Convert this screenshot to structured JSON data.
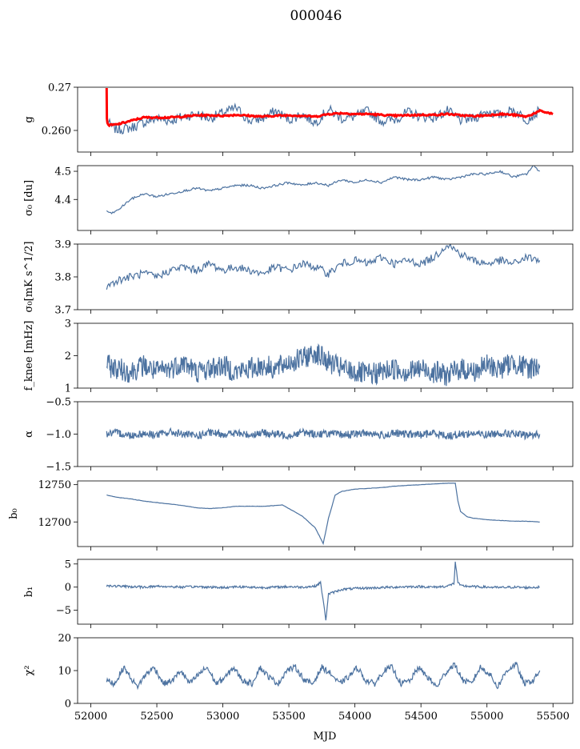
{
  "chart_data": {
    "type": "line",
    "title": "000046",
    "xlabel": "MJD",
    "xlim": [
      51900,
      55650
    ],
    "xticks": [
      52000,
      52500,
      53000,
      53500,
      54000,
      54500,
      55000,
      55500
    ],
    "line_color": "#4c72a0",
    "fit_color": "#ff0000",
    "grid": false,
    "panels": [
      {
        "key": "g",
        "ylabel": "g",
        "ylim": [
          0.255,
          0.27
        ],
        "yticks": [
          0.26,
          0.27
        ],
        "ytick_labels": [
          "0.260",
          "0.27"
        ],
        "series": [
          {
            "x": [
              52120,
              52150,
              52200,
              52300,
              52400,
              52500,
              52600,
              52700,
              52800,
              52900,
              53000,
              53100,
              53200,
              53300,
              53400,
              53500,
              53600,
              53700,
              53800,
              53900,
              54000,
              54100,
              54200,
              54300,
              54400,
              54500,
              54600,
              54700,
              54800,
              54900,
              55000,
              55100,
              55200,
              55300,
              55400
            ],
            "y": [
              0.2625,
              0.261,
              0.2602,
              0.2606,
              0.2618,
              0.2628,
              0.2622,
              0.2632,
              0.2638,
              0.2628,
              0.264,
              0.2652,
              0.2622,
              0.2628,
              0.2645,
              0.2625,
              0.2638,
              0.2618,
              0.2648,
              0.2628,
              0.2632,
              0.2645,
              0.2622,
              0.2625,
              0.2642,
              0.2632,
              0.263,
              0.2645,
              0.2624,
              0.2628,
              0.2644,
              0.2635,
              0.2648,
              0.2625,
              0.2645
            ]
          },
          {
            "x": [
              52120,
              52122,
              52126,
              52140,
              52200,
              52300,
              52400,
              52500,
              52600,
              52700,
              52800,
              52900,
              53000,
              53100,
              53200,
              53300,
              53400,
              53500,
              53600,
              53700,
              53800,
              53900,
              54000,
              54100,
              54200,
              54300,
              54400,
              54500,
              54600,
              54700,
              54800,
              54900,
              55000,
              55100,
              55200,
              55300,
              55400,
              55500
            ],
            "y": [
              0.27,
              0.2628,
              0.2616,
              0.2612,
              0.2614,
              0.2622,
              0.263,
              0.263,
              0.263,
              0.2632,
              0.2635,
              0.2635,
              0.2634,
              0.2636,
              0.2634,
              0.2632,
              0.2634,
              0.2635,
              0.2634,
              0.2632,
              0.2638,
              0.264,
              0.2638,
              0.2638,
              0.2636,
              0.2634,
              0.2635,
              0.2636,
              0.2636,
              0.2638,
              0.2635,
              0.2633,
              0.2635,
              0.2638,
              0.2636,
              0.2632,
              0.2645,
              0.2638
            ]
          }
        ]
      },
      {
        "key": "sigma0_du",
        "ylabel": "σ₀ [du]",
        "ylim": [
          4.29,
          4.52
        ],
        "yticks": [
          4.4,
          4.5
        ],
        "ytick_labels": [
          "4.4",
          "4.5"
        ],
        "series": [
          {
            "x": [
              52120,
              52150,
              52200,
              52250,
              52300,
              52400,
              52500,
              52600,
              52700,
              52800,
              52900,
              53000,
              53100,
              53200,
              53300,
              53400,
              53500,
              53600,
              53700,
              53800,
              53900,
              54000,
              54100,
              54200,
              54300,
              54400,
              54500,
              54600,
              54700,
              54800,
              54900,
              55000,
              55100,
              55200,
              55300,
              55350,
              55400
            ],
            "y": [
              4.36,
              4.35,
              4.36,
              4.38,
              4.4,
              4.42,
              4.41,
              4.42,
              4.43,
              4.44,
              4.43,
              4.44,
              4.45,
              4.45,
              4.44,
              4.45,
              4.46,
              4.45,
              4.46,
              4.45,
              4.47,
              4.46,
              4.47,
              4.46,
              4.48,
              4.47,
              4.47,
              4.48,
              4.47,
              4.48,
              4.49,
              4.49,
              4.5,
              4.48,
              4.49,
              4.52,
              4.5
            ]
          }
        ]
      },
      {
        "key": "sigma0_mks",
        "ylabel": "σ₀[mK s^1/2]",
        "ylim": [
          3.7,
          3.9
        ],
        "yticks": [
          3.7,
          3.8,
          3.9
        ],
        "ytick_labels": [
          "3.7",
          "3.8",
          "3.9"
        ],
        "series": [
          {
            "x": [
              52120,
              52200,
              52300,
              52400,
              52500,
              52600,
              52700,
              52800,
              52900,
              53000,
              53100,
              53200,
              53300,
              53400,
              53500,
              53600,
              53700,
              53800,
              53900,
              54000,
              54100,
              54200,
              54300,
              54400,
              54500,
              54600,
              54700,
              54800,
              54900,
              55000,
              55100,
              55200,
              55300,
              55400
            ],
            "y": [
              3.77,
              3.79,
              3.8,
              3.81,
              3.8,
              3.82,
              3.83,
              3.82,
              3.84,
              3.82,
              3.83,
              3.82,
              3.81,
              3.83,
              3.82,
              3.84,
              3.83,
              3.81,
              3.84,
              3.85,
              3.84,
              3.86,
              3.84,
              3.85,
              3.84,
              3.86,
              3.9,
              3.87,
              3.85,
              3.84,
              3.85,
              3.84,
              3.86,
              3.85
            ]
          }
        ]
      },
      {
        "key": "fknee",
        "ylabel": "f_knee [mHz]",
        "ylim": [
          1,
          3
        ],
        "yticks": [
          1,
          2,
          3
        ],
        "ytick_labels": [
          "1",
          "2",
          "3"
        ],
        "series": [
          {
            "x": [
              52120,
              52200,
              52300,
              52400,
              52500,
              52600,
              52700,
              52800,
              52900,
              53000,
              53100,
              53200,
              53300,
              53400,
              53500,
              53600,
              53700,
              53800,
              53900,
              54000,
              54100,
              54200,
              54300,
              54400,
              54500,
              54600,
              54700,
              54800,
              54900,
              55000,
              55100,
              55200,
              55300,
              55400
            ],
            "y": [
              1.7,
              1.6,
              1.5,
              1.7,
              1.5,
              1.6,
              1.8,
              1.5,
              1.6,
              1.7,
              1.5,
              1.6,
              1.7,
              1.6,
              1.8,
              1.9,
              2.1,
              1.8,
              1.6,
              1.5,
              1.4,
              1.5,
              1.6,
              1.5,
              1.6,
              1.5,
              1.4,
              1.6,
              1.5,
              1.7,
              1.6,
              1.8,
              1.6,
              1.7
            ]
          }
        ]
      },
      {
        "key": "alpha",
        "ylabel": "α",
        "ylim": [
          -1.5,
          -0.5
        ],
        "yticks": [
          -1.5,
          -1.0,
          -0.5
        ],
        "ytick_labels": [
          "−1.5",
          "−1.0",
          "−0.5"
        ],
        "series": [
          {
            "x": [
              52120,
              52200,
              52300,
              52400,
              52500,
              52600,
              52700,
              52800,
              52900,
              53000,
              53100,
              53200,
              53300,
              53400,
              53500,
              53600,
              53700,
              53800,
              53900,
              54000,
              54100,
              54200,
              54300,
              54400,
              54500,
              54600,
              54700,
              54800,
              54900,
              55000,
              55100,
              55200,
              55300,
              55400
            ],
            "y": [
              -1.0,
              -0.98,
              -1.02,
              -0.99,
              -1.01,
              -0.97,
              -1.0,
              -1.03,
              -0.98,
              -1.0,
              -0.99,
              -1.01,
              -0.98,
              -1.0,
              -1.02,
              -0.97,
              -1.0,
              -0.99,
              -1.01,
              -1.0,
              -0.98,
              -1.02,
              -0.99,
              -1.0,
              -1.01,
              -0.98,
              -1.03,
              -1.0,
              -0.99,
              -1.01,
              -0.98,
              -1.0,
              -1.02,
              -1.0
            ]
          }
        ]
      },
      {
        "key": "b0",
        "ylabel": "b₀",
        "ylim": [
          12667,
          12755
        ],
        "yticks": [
          12700,
          12750
        ],
        "ytick_labels": [
          "12700",
          "12750"
        ],
        "series": [
          {
            "x": [
              52120,
              52200,
              52300,
              52400,
              52500,
              52600,
              52700,
              52800,
              52900,
              53000,
              53100,
              53200,
              53300,
              53400,
              53450,
              53500,
              53600,
              53700,
              53760,
              53800,
              53850,
              53900,
              54000,
              54100,
              54200,
              54300,
              54400,
              54500,
              54600,
              54700,
              54760,
              54780,
              54800,
              54850,
              54900,
              55000,
              55100,
              55200,
              55300,
              55400
            ],
            "y": [
              12736,
              12733,
              12731,
              12728,
              12726,
              12724,
              12722,
              12719,
              12718,
              12719,
              12721,
              12721,
              12721,
              12722,
              12723,
              12718,
              12708,
              12692,
              12671,
              12705,
              12736,
              12741,
              12744,
              12745,
              12746,
              12748,
              12749,
              12750,
              12751,
              12752,
              12752,
              12728,
              12714,
              12707,
              12705,
              12703,
              12702,
              12701,
              12701,
              12700
            ]
          }
        ]
      },
      {
        "key": "b1",
        "ylabel": "b₁",
        "ylim": [
          -8,
          6
        ],
        "yticks": [
          -5,
          0,
          5
        ],
        "ytick_labels": [
          "−5",
          "0",
          "5"
        ],
        "series": [
          {
            "x": [
              52120,
              52200,
              52300,
              52400,
              52500,
              52600,
              52700,
              52800,
              52900,
              53000,
              53100,
              53200,
              53300,
              53400,
              53500,
              53600,
              53700,
              53740,
              53760,
              53780,
              53800,
              53900,
              54000,
              54100,
              54200,
              54300,
              54400,
              54500,
              54600,
              54700,
              54750,
              54760,
              54780,
              54800,
              54900,
              55000,
              55100,
              55200,
              55300,
              55400
            ],
            "y": [
              0.3,
              0.2,
              0.1,
              0.0,
              0.2,
              0.1,
              0.0,
              0.1,
              0.0,
              -0.1,
              0.1,
              0.0,
              -0.1,
              0.0,
              0.1,
              0.0,
              0.2,
              1.0,
              -3.0,
              -7.0,
              -1.5,
              -0.5,
              -0.3,
              -0.2,
              -0.1,
              0.0,
              0.1,
              0.1,
              0.0,
              0.2,
              0.8,
              5.5,
              1.0,
              0.3,
              0.1,
              0.0,
              -0.1,
              0.0,
              -0.1,
              0.0
            ]
          }
        ]
      },
      {
        "key": "chi2",
        "ylabel": "χ²",
        "ylim": [
          0,
          20
        ],
        "yticks": [
          0,
          10,
          20
        ],
        "ytick_labels": [
          "0",
          "10",
          "20"
        ],
        "series": [
          {
            "x": [
              52120,
              52180,
              52250,
              52300,
              52350,
              52420,
              52480,
              52550,
              52620,
              52680,
              52750,
              52820,
              52880,
              52950,
              53020,
              53080,
              53150,
              53220,
              53280,
              53350,
              53420,
              53480,
              53550,
              53620,
              53680,
              53750,
              53820,
              53880,
              53950,
              54020,
              54080,
              54150,
              54220,
              54280,
              54350,
              54420,
              54480,
              54550,
              54620,
              54680,
              54750,
              54820,
              54880,
              54950,
              55020,
              55080,
              55150,
              55220,
              55280,
              55350,
              55400
            ],
            "y": [
              7,
              6,
              11,
              8,
              5,
              9,
              11,
              6,
              7,
              10,
              6,
              9,
              11,
              6,
              8,
              11,
              7,
              6,
              11,
              8,
              6,
              10,
              11,
              7,
              6,
              11,
              9,
              6,
              8,
              11,
              7,
              6,
              10,
              11,
              6,
              7,
              11,
              8,
              5,
              9,
              12,
              7,
              6,
              11,
              9,
              5,
              10,
              12,
              6,
              7,
              10
            ]
          }
        ]
      }
    ]
  }
}
